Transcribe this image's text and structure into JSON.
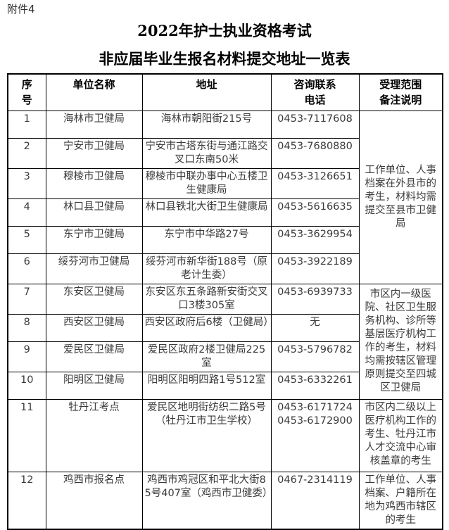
{
  "attachment_label": "附件4",
  "title_line1": "2022年护士执业资格考试",
  "title_line2": "非应届毕业生报名材料提交地址一览表",
  "table": {
    "headers": {
      "no": "序\n号",
      "unit": "单位名称",
      "address": "地址",
      "phone": "咨询联系\n电话",
      "remark": "受理范围\n备注说明"
    },
    "rows": [
      {
        "no": "1",
        "unit": "海林市卫健局",
        "address": "海林市朝阳街215号",
        "phone": "0453-7117608"
      },
      {
        "no": "2",
        "unit": "宁安市卫健局",
        "address": "宁安市古塔东街与通江路交叉口东南50米",
        "phone": "0453-7680880"
      },
      {
        "no": "3",
        "unit": "穆棱市卫健局",
        "address": "穆棱市中联办事中心五楼卫生健康局",
        "phone": "0453-3126651"
      },
      {
        "no": "4",
        "unit": "林口县卫健局",
        "address": "林口县铁北大街卫生健康局",
        "phone": "0453-5616635"
      },
      {
        "no": "5",
        "unit": "东宁市卫健局",
        "address": "东宁市中华路27号",
        "phone": "0453-3629954"
      },
      {
        "no": "6",
        "unit": "绥芬河市卫健局",
        "address": "绥芬河市新华街188号（原老计生委）",
        "phone": "0453-3922189"
      },
      {
        "no": "7",
        "unit": "东安区卫健局",
        "address": "东安区东五条路新安街交叉口3楼305室",
        "phone": "0453-6939733"
      },
      {
        "no": "8",
        "unit": "西安区卫健局",
        "address": "西安区政府后6楼（卫健局）",
        "phone": "无"
      },
      {
        "no": "9",
        "unit": "爱民区卫健局",
        "address": "爱民区政府2楼卫健局225室",
        "phone": "0453-5796782"
      },
      {
        "no": "10",
        "unit": "阳明区卫健局",
        "address": "阳明区阳明四路1号512室",
        "phone": "0453-6332261"
      },
      {
        "no": "11",
        "unit": "牡丹江考点",
        "address": "爱民区地明街纺织二路5号（牡丹江市卫生学校）",
        "phone": "0453-6171724\n0453-6172900"
      },
      {
        "no": "12",
        "unit": "鸡西市报名点",
        "address": "鸡西市鸡冠区和平北大街85号407室（鸡西市卫健委）",
        "phone": "0467-2314119"
      }
    ],
    "remarks": [
      {
        "rows": "1-6",
        "text": "工作单位、人事档案在外县市的考生，材料均需提交至县市卫健局"
      },
      {
        "rows": "7-10",
        "text": "市区内一级医院、社区卫生服务机构、诊所等基层医疗机构工作的考生，材料均需按辖区管理原则提交至四城区卫健局"
      },
      {
        "rows": "11",
        "text": "市区内二级以上医疗机构工作的考生、牡丹江市人才交流中心审核盖章的考生"
      },
      {
        "rows": "12",
        "text": "工作单位、人事档案、户籍所在地为鸡西市辖区的考生"
      }
    ]
  }
}
